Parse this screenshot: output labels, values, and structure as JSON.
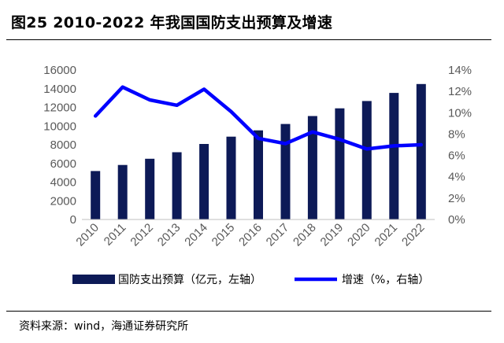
{
  "title": "图25 2010-2022 年我国国防支出预算及增速",
  "source": "资料来源：wind，海通证券研究所",
  "colors": {
    "bar": "#0d1a57",
    "line": "#0000ff",
    "axis": "#bfbfbf"
  },
  "chart_data": {
    "type": "bar",
    "categories": [
      "2010",
      "2011",
      "2012",
      "2013",
      "2014",
      "2015",
      "2016",
      "2017",
      "2018",
      "2019",
      "2020",
      "2021",
      "2022"
    ],
    "series": [
      {
        "name": "国防支出预算（亿元，左轴）",
        "type": "bar",
        "axis": "left",
        "values": [
          5191,
          5836,
          6503,
          7202,
          8082,
          8869,
          9544,
          10226,
          11070,
          11899,
          12680,
          13553,
          14504
        ]
      },
      {
        "name": "增速（%，右轴）",
        "type": "line",
        "axis": "right",
        "values": [
          9.7,
          12.4,
          11.2,
          10.7,
          12.2,
          10.1,
          7.6,
          7.1,
          8.2,
          7.5,
          6.6,
          6.9,
          7.0
        ]
      }
    ],
    "y_left": {
      "min": 0,
      "max": 16000,
      "ticks": [
        0,
        2000,
        4000,
        6000,
        8000,
        10000,
        12000,
        14000,
        16000
      ]
    },
    "y_right": {
      "min": 0,
      "max": 14,
      "ticks": [
        "0%",
        "2%",
        "4%",
        "6%",
        "8%",
        "10%",
        "12%",
        "14%"
      ]
    },
    "legend_position": "bottom",
    "grid": false
  }
}
